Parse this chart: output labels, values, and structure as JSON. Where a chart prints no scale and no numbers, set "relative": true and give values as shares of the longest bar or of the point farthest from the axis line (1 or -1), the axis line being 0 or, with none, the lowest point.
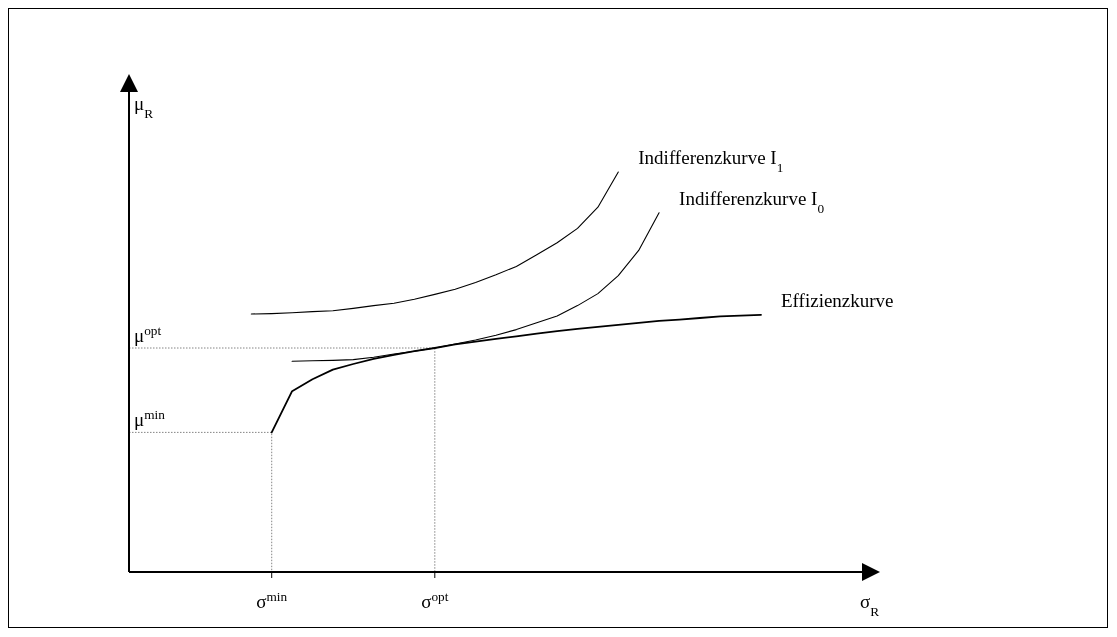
{
  "chart_data": {
    "type": "line",
    "relative": true,
    "xlabel": "σ$_{R}$",
    "ylabel": "μ$_{R}$",
    "categories": [
      null,
      null,
      null,
      null,
      null,
      null,
      null,
      "σ$^{min}$",
      null,
      null,
      null,
      null,
      null,
      null,
      null,
      "σ$^{opt}$",
      null,
      null,
      null,
      null,
      null,
      null,
      null,
      null,
      null,
      null,
      null,
      null,
      null,
      null,
      null,
      null
    ],
    "annotations": [
      "μ$^{min}$",
      "μ$^{opt}$"
    ],
    "series": [
      {
        "name": "Indifferenzkurve I$_{1}$",
        "color": "#000000",
        "values": [
          null,
          null,
          null,
          null,
          null,
          null,
          0.645,
          0.646,
          0.648,
          0.651,
          0.653,
          0.659,
          0.666,
          0.672,
          0.682,
          0.694,
          0.707,
          0.724,
          0.743,
          0.764,
          0.793,
          0.823,
          0.859,
          0.912,
          1,
          null,
          null,
          null,
          null,
          null,
          null,
          null
        ]
      },
      {
        "name": "Indifferenzkurve I$_{0}$",
        "color": "#000000",
        "values": [
          null,
          null,
          null,
          null,
          null,
          null,
          null,
          null,
          0.527,
          0.528,
          0.529,
          0.531,
          0.537,
          0.545,
          0.552,
          0.56,
          0.57,
          0.58,
          0.592,
          0.606,
          0.623,
          0.64,
          0.666,
          0.696,
          0.741,
          0.804,
          0.898,
          null,
          null,
          null,
          null,
          null
        ]
      },
      {
        "name": "Effizienzkurve",
        "color": "#000000",
        "values": [
          null,
          null,
          null,
          null,
          null,
          null,
          null,
          0.349,
          0.452,
          0.482,
          0.506,
          0.52,
          0.533,
          0.543,
          0.552,
          0.56,
          0.569,
          0.576,
          0.583,
          0.589,
          0.596,
          0.602,
          0.608,
          0.613,
          0.618,
          0.623,
          0.628,
          0.631,
          0.635,
          0.639,
          0.641,
          0.643
        ]
      }
    ]
  }
}
